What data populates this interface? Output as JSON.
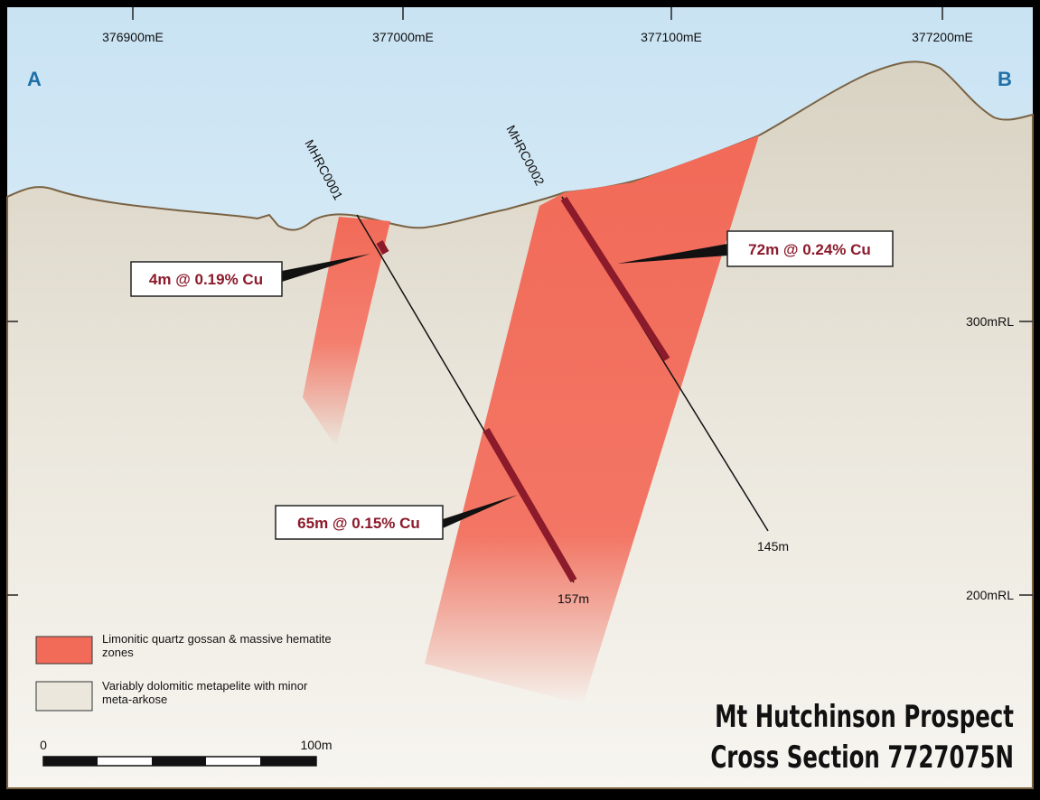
{
  "axis_top": {
    "labels": [
      "376900mE",
      "377000mE",
      "377100mE",
      "377200mE"
    ]
  },
  "section_ends": {
    "left": "A",
    "right": "B"
  },
  "axis_right": {
    "labels": [
      "300mRL",
      "200mRL"
    ]
  },
  "drill_holes": [
    {
      "name": "MHRC0001",
      "depth": "157m"
    },
    {
      "name": "MHRC0002",
      "depth": "145m"
    }
  ],
  "intercepts": [
    "4m @ 0.19% Cu",
    "72m @ 0.24% Cu",
    "65m @ 0.15% Cu"
  ],
  "legend": {
    "items": [
      "Limonitic quartz gossan & massive hematite zones",
      "Variably dolomitic metapelite with minor meta-arkose"
    ]
  },
  "scale_bar": {
    "start": "0",
    "end": "100m"
  },
  "title": {
    "line1": "Mt Hutchinson Prospect",
    "line2": "Cross Section 7727075N"
  }
}
